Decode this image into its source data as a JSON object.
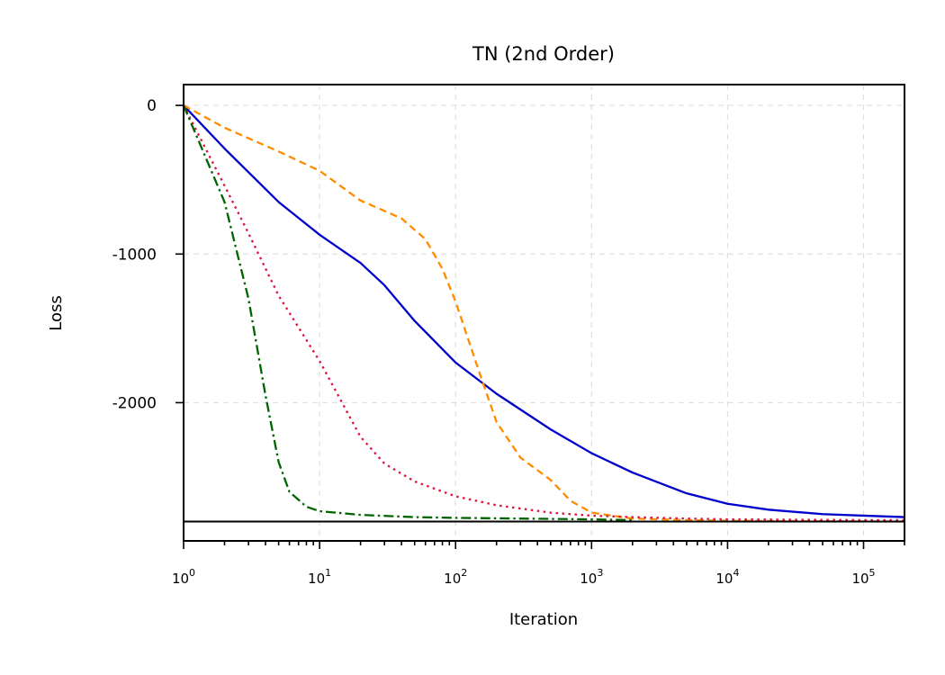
{
  "chart_data": {
    "type": "line",
    "title": "TN (2nd Order)",
    "xlabel": "Iteration",
    "ylabel": "Loss",
    "xscale": "log",
    "xlim": [
      1,
      200000
    ],
    "ylim": [
      -2930,
      140
    ],
    "x_ticks": [
      {
        "base": "10",
        "exp": "0",
        "value": 1
      },
      {
        "base": "10",
        "exp": "1",
        "value": 10
      },
      {
        "base": "10",
        "exp": "2",
        "value": 100
      },
      {
        "base": "10",
        "exp": "3",
        "value": 1000
      },
      {
        "base": "10",
        "exp": "4",
        "value": 10000
      },
      {
        "base": "10",
        "exp": "5",
        "value": 100000
      }
    ],
    "y_ticks": [
      {
        "label": "0",
        "value": 0
      },
      {
        "label": "-1000",
        "value": -1000
      },
      {
        "label": "-2000",
        "value": -2000
      }
    ],
    "grid": true,
    "reference_line": -2800,
    "series": [
      {
        "color": "#0000cc",
        "dash": "solid",
        "x": [
          1,
          2,
          5,
          10,
          20,
          30,
          50,
          100,
          200,
          500,
          1000,
          2000,
          5000,
          10000,
          20000,
          50000,
          100000,
          200000
        ],
        "y": [
          0,
          -290,
          -650,
          -870,
          -1060,
          -1210,
          -1450,
          -1730,
          -1940,
          -2180,
          -2340,
          -2470,
          -2610,
          -2680,
          -2720,
          -2750,
          -2760,
          -2770
        ]
      },
      {
        "color": "#ff8c00",
        "dash": "dashed",
        "x": [
          1,
          2,
          5,
          10,
          20,
          40,
          60,
          80,
          100,
          150,
          200,
          300,
          500,
          700,
          1000,
          2000,
          5000,
          10000,
          50000,
          200000
        ],
        "y": [
          0,
          -150,
          -310,
          -440,
          -640,
          -760,
          -900,
          -1100,
          -1320,
          -1800,
          -2130,
          -2370,
          -2520,
          -2660,
          -2740,
          -2780,
          -2790,
          -2795,
          -2798,
          -2800
        ]
      },
      {
        "color": "#dc143c",
        "dash": "dotted",
        "x": [
          1,
          2,
          3,
          5,
          10,
          20,
          30,
          50,
          100,
          200,
          500,
          1000,
          2000,
          5000,
          10000,
          100000,
          200000
        ],
        "y": [
          0,
          -540,
          -860,
          -1280,
          -1720,
          -2230,
          -2410,
          -2530,
          -2630,
          -2690,
          -2740,
          -2760,
          -2770,
          -2780,
          -2785,
          -2790,
          -2790
        ]
      },
      {
        "color": "#006400",
        "dash": "dashdot",
        "x": [
          1,
          2,
          3,
          4,
          5,
          6,
          8,
          10,
          20,
          50,
          100,
          1000,
          2000
        ],
        "y": [
          0,
          -650,
          -1300,
          -1950,
          -2400,
          -2600,
          -2700,
          -2730,
          -2755,
          -2770,
          -2775,
          -2785,
          -2790
        ]
      }
    ]
  }
}
